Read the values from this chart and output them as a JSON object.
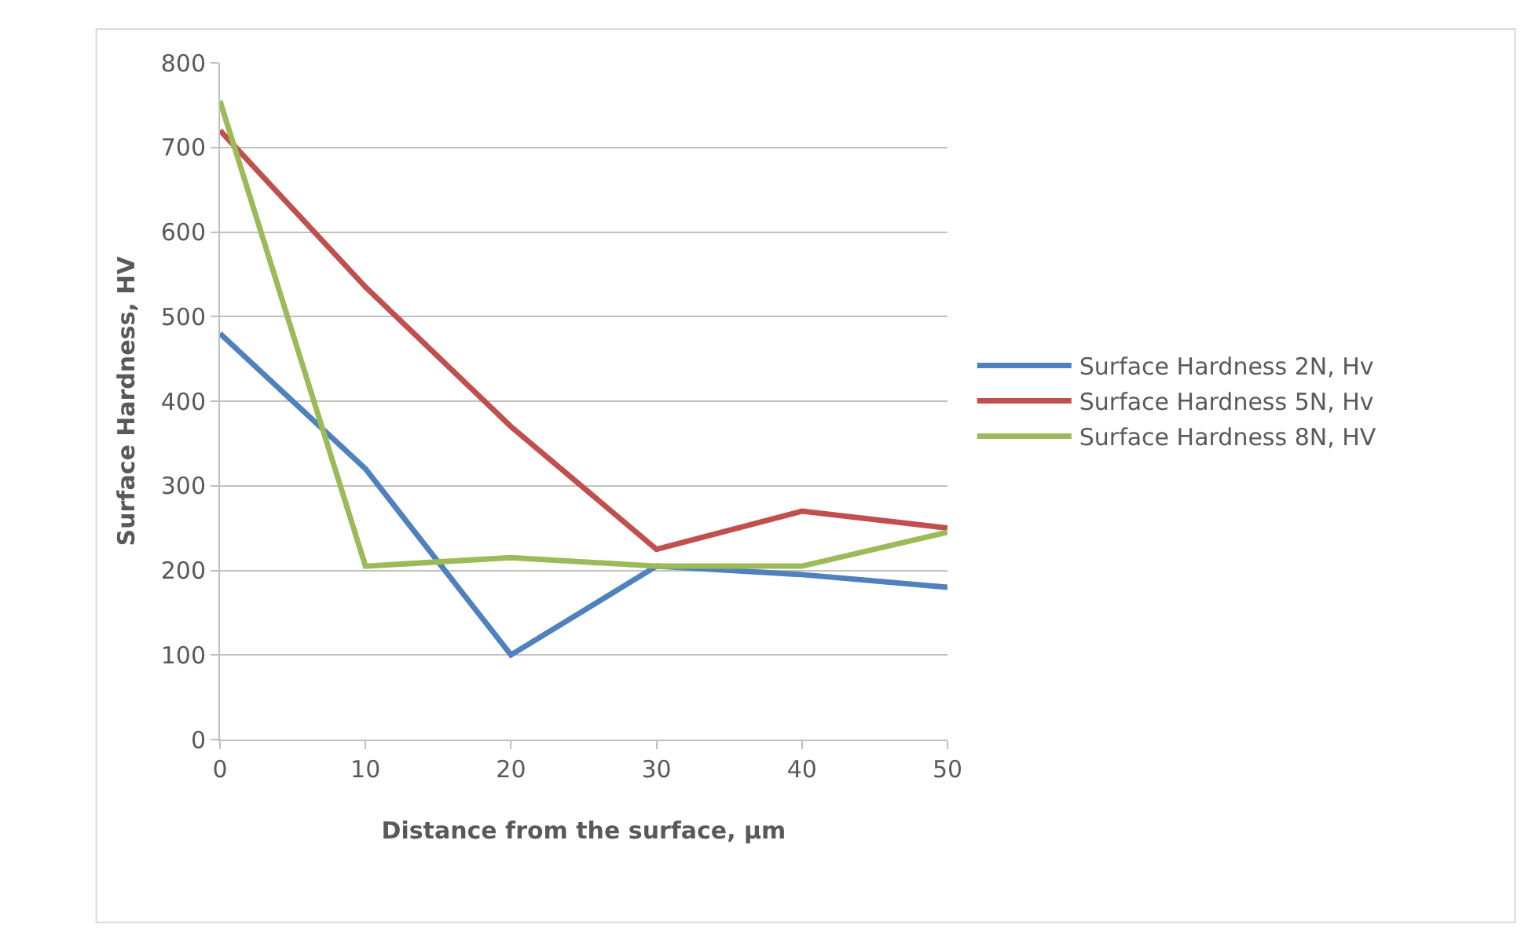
{
  "chart_data": {
    "type": "line",
    "xlabel": "Distance from the surface, µm",
    "ylabel": "Surface Hardness, HV",
    "x": [
      0,
      10,
      20,
      30,
      40,
      50
    ],
    "series": [
      {
        "name": "Surface Hardness 2N, Hv",
        "color": "#4f81bd",
        "values": [
          480,
          320,
          100,
          205,
          195,
          180
        ]
      },
      {
        "name": "Surface Hardness 5N, Hv",
        "color": "#c0504d",
        "values": [
          720,
          535,
          370,
          225,
          270,
          250
        ]
      },
      {
        "name": "Surface Hardness 8N, HV",
        "color": "#9bbb59",
        "values": [
          755,
          205,
          215,
          205,
          205,
          245
        ]
      }
    ],
    "xlim": [
      0,
      50
    ],
    "xticks": [
      0,
      10,
      20,
      30,
      40,
      50
    ],
    "ylim": [
      0,
      800
    ],
    "yticks": [
      0,
      100,
      200,
      300,
      400,
      500,
      600,
      700,
      800
    ],
    "grid": "y",
    "legend": "right",
    "marker": "none",
    "line_style": "solid"
  }
}
